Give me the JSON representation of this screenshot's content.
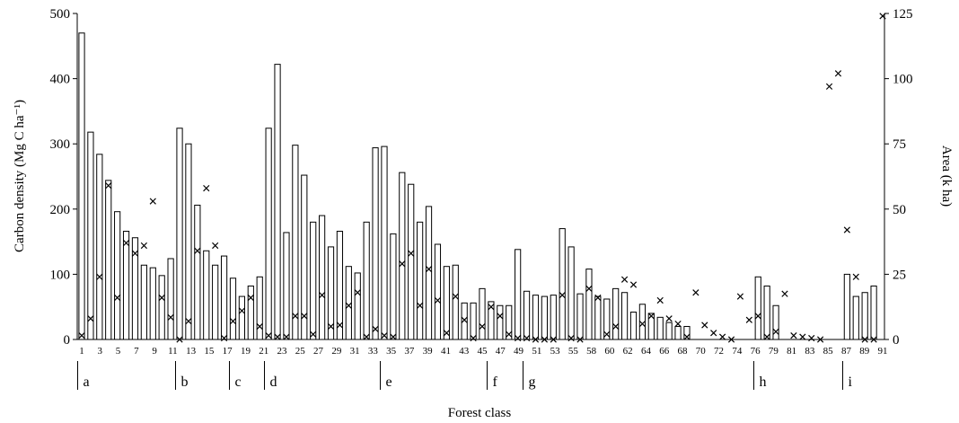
{
  "chart_data": {
    "type": "bar",
    "xlabel": "Forest class",
    "ylabel_left": "Carbon density (Mg C ha⁻¹)",
    "ylabel_right": "Area (k ha)",
    "ylim_left": [
      0,
      500
    ],
    "ylim_right": [
      0,
      125
    ],
    "yticks_left": [
      "0",
      "100",
      "200",
      "300",
      "400",
      "500"
    ],
    "yticks_right": [
      "0",
      "25",
      "50",
      "75",
      "100",
      "125"
    ],
    "x_min": 1,
    "x_max": 91,
    "xtick_labels": [
      "1",
      "3",
      "5",
      "7",
      "9",
      "11",
      "13",
      "15",
      "17",
      "19",
      "21",
      "23",
      "25",
      "27",
      "29",
      "31",
      "33",
      "35",
      "37",
      "39",
      "41",
      "43",
      "45",
      "47",
      "49",
      "51",
      "53",
      "55",
      "58",
      "60",
      "62",
      "64",
      "66",
      "68",
      "70",
      "72",
      "74",
      "76",
      "79",
      "81",
      "83",
      "85",
      "87",
      "89",
      "91"
    ],
    "categories": [
      1,
      2,
      3,
      4,
      5,
      6,
      7,
      8,
      9,
      10,
      11,
      12,
      13,
      14,
      15,
      16,
      17,
      18,
      19,
      20,
      21,
      22,
      23,
      24,
      25,
      26,
      27,
      28,
      29,
      30,
      31,
      32,
      33,
      34,
      35,
      36,
      37,
      38,
      39,
      40,
      41,
      42,
      43,
      44,
      45,
      46,
      47,
      48,
      49,
      50,
      51,
      52,
      53,
      54,
      55,
      56,
      57,
      58,
      59,
      60,
      61,
      62,
      63,
      64,
      65,
      66,
      67,
      68,
      69,
      70,
      71,
      72,
      73,
      74,
      75,
      76,
      77,
      78,
      79,
      80,
      81,
      82,
      83,
      84,
      85,
      86,
      87,
      88,
      89,
      90,
      91
    ],
    "groups": [
      {
        "label": "a",
        "start": 1
      },
      {
        "label": "b",
        "start": 12
      },
      {
        "label": "c",
        "start": 18
      },
      {
        "label": "d",
        "start": 22
      },
      {
        "label": "e",
        "start": 35
      },
      {
        "label": "f",
        "start": 47
      },
      {
        "label": "g",
        "start": 51
      },
      {
        "label": "h",
        "start": 77
      },
      {
        "label": "i",
        "start": 87
      }
    ],
    "series": [
      {
        "kind": "bar",
        "axis": "left",
        "values": [
          470,
          318,
          284,
          244,
          196,
          166,
          156,
          114,
          110,
          98,
          124,
          324,
          300,
          206,
          136,
          114,
          128,
          94,
          66,
          82,
          96,
          324,
          422,
          164,
          298,
          252,
          180,
          190,
          142,
          166,
          112,
          102,
          180,
          294,
          296,
          162,
          256,
          238,
          180,
          204,
          146,
          112,
          114,
          56,
          56,
          78,
          58,
          52,
          52,
          138,
          74,
          68,
          66,
          68,
          170,
          142,
          70,
          108,
          66,
          62,
          78,
          72,
          42,
          54,
          40,
          34,
          26,
          20,
          20,
          0,
          0,
          0,
          0,
          0,
          0,
          0,
          96,
          82,
          52,
          0,
          0,
          0,
          0,
          0,
          0,
          0,
          100,
          66,
          72,
          82,
          0
        ]
      },
      {
        "kind": "marker",
        "axis": "right",
        "values": [
          1.5,
          8,
          24,
          59,
          16,
          37,
          33,
          36,
          53,
          16,
          8.5,
          0,
          7,
          34,
          58,
          36,
          0.5,
          7,
          11,
          16,
          5,
          1.5,
          1,
          1,
          9,
          9,
          2,
          17,
          5,
          5.5,
          13,
          18,
          1,
          4,
          1.5,
          1,
          29,
          33,
          13,
          27,
          15,
          2.5,
          16.5,
          7.5,
          0.5,
          5,
          12.5,
          9,
          2,
          0.5,
          0.5,
          0,
          0,
          0,
          17,
          0.5,
          0,
          19.5,
          16,
          2,
          5,
          23,
          21,
          6,
          9,
          15,
          8,
          6,
          1,
          18,
          5.5,
          2.5,
          1,
          0,
          16.5,
          7.5,
          9,
          1,
          3,
          17.5,
          1.5,
          1,
          0.5,
          0,
          97,
          102,
          42,
          24,
          0,
          0,
          124
        ]
      }
    ]
  }
}
